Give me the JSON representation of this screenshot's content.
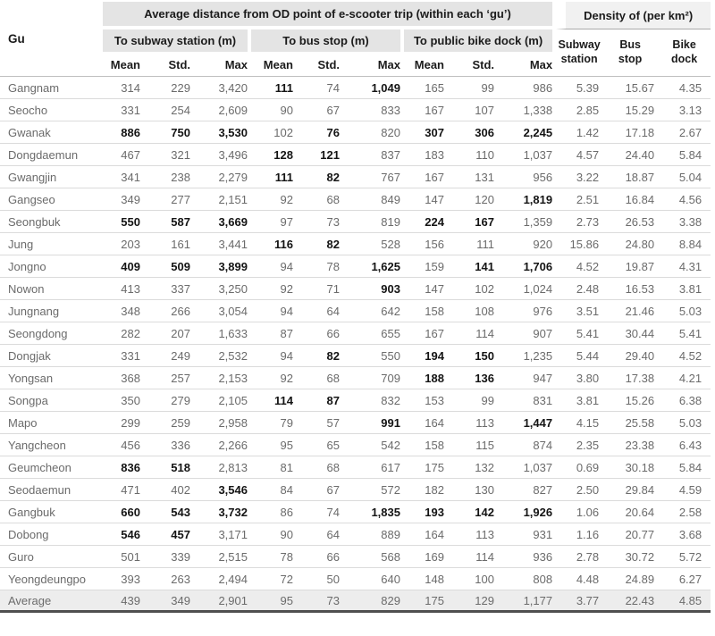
{
  "colors": {
    "group_header_bg": "#e4e4e4",
    "density_header_bg": "#f1f1f1",
    "average_row_bg": "#ededed",
    "row_separator": "#dbdbdb",
    "bottom_rule": "#4f4f4f",
    "body_text": "#6b6b6b",
    "emphasis_text": "#141414"
  },
  "table": {
    "gu_header": "Gu",
    "group_main": "Average distance from OD point of e-scooter trip (within each ‘gu’)",
    "group_density": "Density of (per km²)",
    "sub_groups": [
      "To subway station (m)",
      "To bus stop (m)",
      "To public bike dock (m)"
    ],
    "stats": [
      "Mean",
      "Std.",
      "Max"
    ],
    "density_cols": [
      "Subway\nstation",
      "Bus\nstop",
      "Bike\ndock"
    ],
    "rows": [
      {
        "gu": "Gangnam",
        "values": [
          "314",
          "229",
          "3,420",
          "111",
          "74",
          "1,049",
          "165",
          "99",
          "986",
          "5.39",
          "15.67",
          "4.35"
        ],
        "bold": [
          3,
          5
        ]
      },
      {
        "gu": "Seocho",
        "values": [
          "331",
          "254",
          "2,609",
          "90",
          "67",
          "833",
          "167",
          "107",
          "1,338",
          "2.85",
          "15.29",
          "3.13"
        ],
        "bold": []
      },
      {
        "gu": "Gwanak",
        "values": [
          "886",
          "750",
          "3,530",
          "102",
          "76",
          "820",
          "307",
          "306",
          "2,245",
          "1.42",
          "17.18",
          "2.67"
        ],
        "bold": [
          0,
          1,
          2,
          4,
          6,
          7,
          8
        ]
      },
      {
        "gu": "Dongdaemun",
        "values": [
          "467",
          "321",
          "3,496",
          "128",
          "121",
          "837",
          "183",
          "110",
          "1,037",
          "4.57",
          "24.40",
          "5.84"
        ],
        "bold": [
          3,
          4
        ]
      },
      {
        "gu": "Gwangjin",
        "values": [
          "341",
          "238",
          "2,279",
          "111",
          "82",
          "767",
          "167",
          "131",
          "956",
          "3.22",
          "18.87",
          "5.04"
        ],
        "bold": [
          3,
          4
        ]
      },
      {
        "gu": "Gangseo",
        "values": [
          "349",
          "277",
          "2,151",
          "92",
          "68",
          "849",
          "147",
          "120",
          "1,819",
          "2.51",
          "16.84",
          "4.56"
        ],
        "bold": [
          8
        ]
      },
      {
        "gu": "Seongbuk",
        "values": [
          "550",
          "587",
          "3,669",
          "97",
          "73",
          "819",
          "224",
          "167",
          "1,359",
          "2.73",
          "26.53",
          "3.38"
        ],
        "bold": [
          0,
          1,
          2,
          6,
          7
        ]
      },
      {
        "gu": "Jung",
        "values": [
          "203",
          "161",
          "3,441",
          "116",
          "82",
          "528",
          "156",
          "111",
          "920",
          "15.86",
          "24.80",
          "8.84"
        ],
        "bold": [
          3,
          4
        ]
      },
      {
        "gu": "Jongno",
        "values": [
          "409",
          "509",
          "3,899",
          "94",
          "78",
          "1,625",
          "159",
          "141",
          "1,706",
          "4.52",
          "19.87",
          "4.31"
        ],
        "bold": [
          0,
          1,
          2,
          5,
          7,
          8
        ]
      },
      {
        "gu": "Nowon",
        "values": [
          "413",
          "337",
          "3,250",
          "92",
          "71",
          "903",
          "147",
          "102",
          "1,024",
          "2.48",
          "16.53",
          "3.81"
        ],
        "bold": [
          5
        ]
      },
      {
        "gu": "Jungnang",
        "values": [
          "348",
          "266",
          "3,054",
          "94",
          "64",
          "642",
          "158",
          "108",
          "976",
          "3.51",
          "21.46",
          "5.03"
        ],
        "bold": []
      },
      {
        "gu": "Seongdong",
        "values": [
          "282",
          "207",
          "1,633",
          "87",
          "66",
          "655",
          "167",
          "114",
          "907",
          "5.41",
          "30.44",
          "5.41"
        ],
        "bold": []
      },
      {
        "gu": "Dongjak",
        "values": [
          "331",
          "249",
          "2,532",
          "94",
          "82",
          "550",
          "194",
          "150",
          "1,235",
          "5.44",
          "29.40",
          "4.52"
        ],
        "bold": [
          4,
          6,
          7
        ]
      },
      {
        "gu": "Yongsan",
        "values": [
          "368",
          "257",
          "2,153",
          "92",
          "68",
          "709",
          "188",
          "136",
          "947",
          "3.80",
          "17.38",
          "4.21"
        ],
        "bold": [
          6,
          7
        ]
      },
      {
        "gu": "Songpa",
        "values": [
          "350",
          "279",
          "2,105",
          "114",
          "87",
          "832",
          "153",
          "99",
          "831",
          "3.81",
          "15.26",
          "6.38"
        ],
        "bold": [
          3,
          4
        ]
      },
      {
        "gu": "Mapo",
        "values": [
          "299",
          "259",
          "2,958",
          "79",
          "57",
          "991",
          "164",
          "113",
          "1,447",
          "4.15",
          "25.58",
          "5.03"
        ],
        "bold": [
          5,
          8
        ]
      },
      {
        "gu": "Yangcheon",
        "values": [
          "456",
          "336",
          "2,266",
          "95",
          "65",
          "542",
          "158",
          "115",
          "874",
          "2.35",
          "23.38",
          "6.43"
        ],
        "bold": []
      },
      {
        "gu": "Geumcheon",
        "values": [
          "836",
          "518",
          "2,813",
          "81",
          "68",
          "617",
          "175",
          "132",
          "1,037",
          "0.69",
          "30.18",
          "5.84"
        ],
        "bold": [
          0,
          1
        ]
      },
      {
        "gu": "Seodaemun",
        "values": [
          "471",
          "402",
          "3,546",
          "84",
          "67",
          "572",
          "182",
          "130",
          "827",
          "2.50",
          "29.84",
          "4.59"
        ],
        "bold": [
          2
        ]
      },
      {
        "gu": "Gangbuk",
        "values": [
          "660",
          "543",
          "3,732",
          "86",
          "74",
          "1,835",
          "193",
          "142",
          "1,926",
          "1.06",
          "20.64",
          "2.58"
        ],
        "bold": [
          0,
          1,
          2,
          5,
          6,
          7,
          8
        ]
      },
      {
        "gu": "Dobong",
        "values": [
          "546",
          "457",
          "3,171",
          "90",
          "64",
          "889",
          "164",
          "113",
          "931",
          "1.16",
          "20.77",
          "3.68"
        ],
        "bold": [
          0,
          1
        ]
      },
      {
        "gu": "Guro",
        "values": [
          "501",
          "339",
          "2,515",
          "78",
          "66",
          "568",
          "169",
          "114",
          "936",
          "2.78",
          "30.72",
          "5.72"
        ],
        "bold": []
      },
      {
        "gu": "Yeongdeungpo",
        "values": [
          "393",
          "263",
          "2,494",
          "72",
          "50",
          "640",
          "148",
          "100",
          "808",
          "4.48",
          "24.89",
          "6.27"
        ],
        "bold": []
      },
      {
        "gu": "Average",
        "values": [
          "439",
          "349",
          "2,901",
          "95",
          "73",
          "829",
          "175",
          "129",
          "1,177",
          "3.77",
          "22.43",
          "4.85"
        ],
        "bold": [],
        "average": true
      }
    ]
  }
}
